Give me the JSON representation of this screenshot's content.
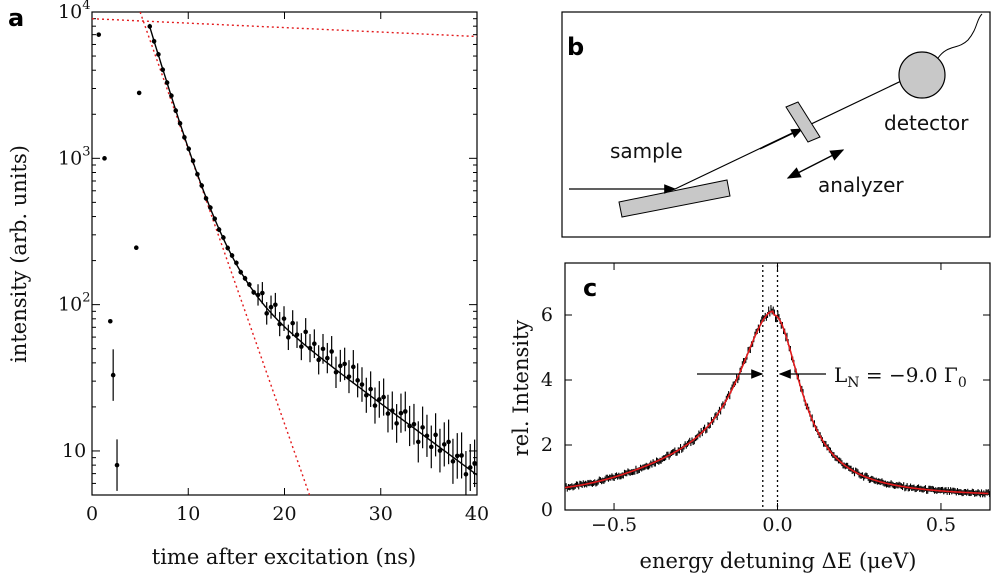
{
  "chart_data": [
    {
      "panel": "a",
      "type": "scatter",
      "xlabel": "time after excitation (ns)",
      "ylabel": "intensity (arb. units)",
      "yscale": "log",
      "xlim": [
        0,
        40
      ],
      "ylim": [
        5,
        10000
      ],
      "xticks": [
        0,
        10,
        20,
        30,
        40
      ],
      "yticks": [
        {
          "value": 10,
          "label": "10"
        },
        {
          "value": 100,
          "label": "10",
          "exp": "2"
        },
        {
          "value": 1000,
          "label": "10",
          "exp": "3"
        },
        {
          "value": 10000,
          "label": "10",
          "exp": "4"
        }
      ],
      "early_points": [
        [
          0.7,
          7000
        ],
        [
          1.3,
          1000
        ],
        [
          1.9,
          77
        ],
        [
          2.2,
          33
        ],
        [
          2.6,
          8
        ],
        [
          4.6,
          245
        ],
        [
          4.9,
          2800
        ]
      ],
      "decay": {
        "t0": 6.0,
        "i0": 7600,
        "tau_fast": 1.95,
        "b": 95,
        "t1": 16.6,
        "tau_slow": 8.9
      },
      "noise_amplitude": [
        0.1,
        -0.05,
        0.14,
        -0.12,
        0.06,
        0.18,
        -0.09,
        0.03,
        -0.15,
        0.11,
        0.22,
        -0.02,
        0.08,
        -0.19,
        0.15,
        0.04,
        -0.11,
        0.2,
        -0.06,
        0.13,
        0.26,
        -0.08,
        0.09,
        0.17,
        -0.14,
        0.05,
        0.21,
        -0.1,
        0.12,
        0.28,
        -0.04,
        0.16,
        -0.13,
        0.24,
        0.07,
        -0.09,
        0.3,
        0.02,
        0.19,
        -0.07,
        0.23,
        0.1,
        0.33,
        -0.05,
        0.15,
        0.27,
        0.06,
        0.36,
        0.12
      ],
      "fit_lines": [
        {
          "name": "fast dotted",
          "color": "#e31a1c",
          "style": "dotted",
          "from": [
            5.0,
            10000
          ],
          "to": [
            22.6,
            5
          ]
        },
        {
          "name": "slow dotted",
          "color": "#e31a1c",
          "style": "dotted",
          "from": [
            0,
            9000
          ],
          "to": [
            40,
            6800
          ]
        }
      ]
    },
    {
      "panel": "c",
      "type": "line",
      "xlabel": "energy detuning ΔE (μeV)",
      "ylabel": "rel. Intensity",
      "xlim": [
        -0.65,
        0.65
      ],
      "ylim": [
        0,
        7.6
      ],
      "xticks": [
        {
          "value": -0.5,
          "label": "−0.5"
        },
        {
          "value": 0.0,
          "label": "0.0"
        },
        {
          "value": 0.5,
          "label": "0.5"
        }
      ],
      "yticks": [
        0,
        2,
        4,
        6
      ],
      "peak": {
        "center": -0.01,
        "height": 6.0,
        "width_left": 0.14,
        "width_right": 0.1,
        "shoulder": 0.42
      },
      "baseline": 0.38,
      "fit_color": "#e31a1c",
      "dotted_markers": [
        -0.045,
        0.0
      ],
      "annotation": "L",
      "annotation_sub": "N",
      "annotation_value": " = −9.0 Γ",
      "annotation_value_sub": "0"
    }
  ],
  "panel_b": {
    "letter": "b",
    "labels": {
      "sample": "sample",
      "analyzer": "analyzer",
      "detector": "detector"
    },
    "fill_color": "#c8c8c8"
  },
  "panel_letters": {
    "a": "a",
    "c": "c"
  }
}
